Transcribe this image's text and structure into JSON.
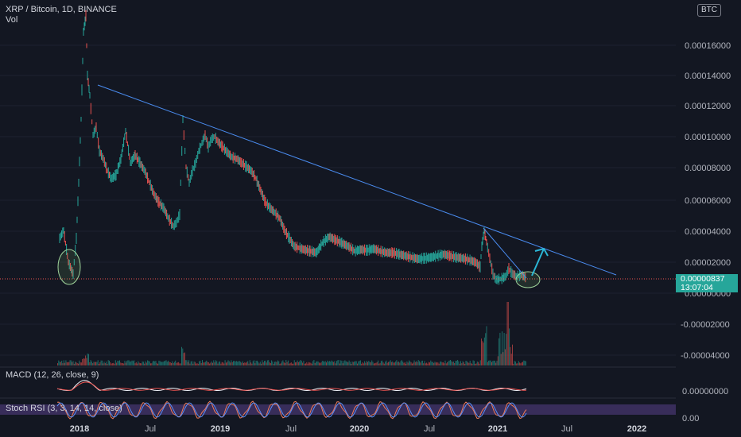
{
  "header": {
    "symbol": "XRP / Bitcoin, 1D, BINANCE",
    "volume_label": "Vol"
  },
  "currency_badge": "BTC",
  "price_axis": {
    "labels": [
      "0.00016000",
      "0.00014000",
      "0.00012000",
      "0.00010000",
      "0.00008000",
      "0.00006000",
      "0.00004000",
      "0.00002000",
      "0.00000000",
      "-0.00002000",
      "-0.00004000"
    ],
    "last_price": "0.00000837",
    "countdown": "13:07:04"
  },
  "indicators": {
    "macd_label": "MACD (12, 26, close, 9)",
    "macd_axis": "0.00000000",
    "stoch_label": "Stoch RSI (3, 3, 14, 14, close)",
    "stoch_axis": "0.00"
  },
  "time_axis": {
    "labels": [
      {
        "text": "2018",
        "bold": true
      },
      {
        "text": "Jul",
        "bold": false
      },
      {
        "text": "2019",
        "bold": true
      },
      {
        "text": "Jul",
        "bold": false
      },
      {
        "text": "2020",
        "bold": true
      },
      {
        "text": "Jul",
        "bold": false
      },
      {
        "text": "2021",
        "bold": true
      },
      {
        "text": "Jul",
        "bold": false
      },
      {
        "text": "2022",
        "bold": true
      }
    ]
  },
  "colors": {
    "background": "#131722",
    "up": "#26a69a",
    "down": "#ef5350",
    "trendline": "#2962ff",
    "arrow": "#2bb6d6",
    "stoch_band": "#7e57c2"
  }
}
